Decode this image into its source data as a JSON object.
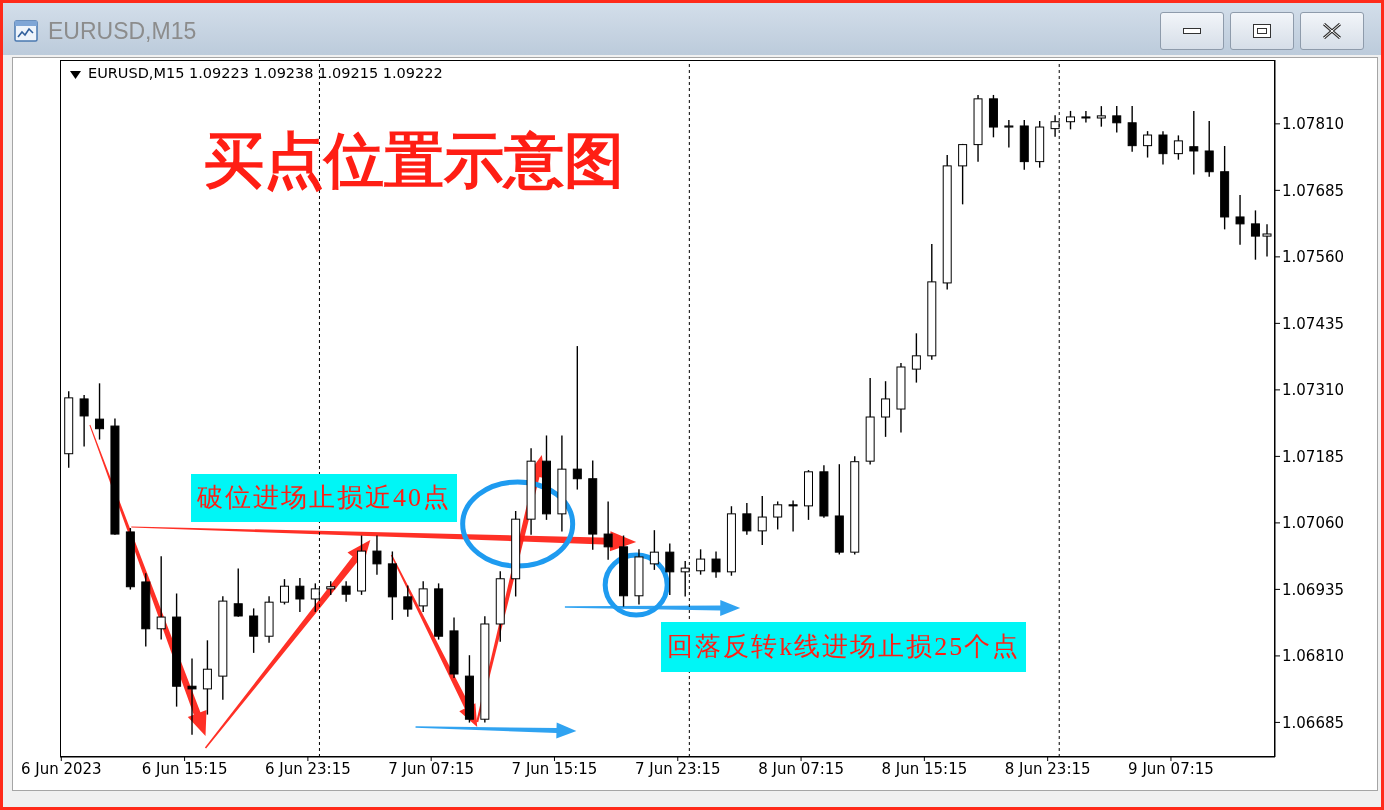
{
  "chart_data": {
    "type": "candlestick",
    "title": "买点位置示意图",
    "annotations": [
      "EURUSD,M15",
      "EURUSD,M15 1.09223 1.09238 1.09215 1.09222",
      "破位进场止损近40点",
      "回落反转k线进场止损25个点"
    ],
    "color": "#000000",
    "x": [
      "2023-06-06T07:45",
      "2023-06-06T08:45",
      "2023-06-06T09:45",
      "2023-06-06T10:45",
      "2023-06-06T11:45",
      "2023-06-06T12:45",
      "2023-06-06T13:45",
      "2023-06-06T14:45",
      "2023-06-06T15:45",
      "2023-06-06T16:45",
      "2023-06-06T17:45",
      "2023-06-06T18:45",
      "2023-06-06T19:45",
      "2023-06-06T20:45",
      "2023-06-06T21:45",
      "2023-06-06T22:45",
      "2023-06-06T23:45",
      "2023-06-07T00:45",
      "2023-06-07T01:45",
      "2023-06-07T02:45",
      "2023-06-07T03:45",
      "2023-06-07T04:45",
      "2023-06-07T05:45",
      "2023-06-07T06:45",
      "2023-06-07T07:45",
      "2023-06-07T08:45",
      "2023-06-07T09:45",
      "2023-06-07T10:45",
      "2023-06-07T11:45",
      "2023-06-07T12:45",
      "2023-06-07T13:45",
      "2023-06-07T14:45",
      "2023-06-07T15:45",
      "2023-06-07T16:45",
      "2023-06-07T17:45",
      "2023-06-07T18:45",
      "2023-06-07T19:45",
      "2023-06-07T20:45",
      "2023-06-07T21:45",
      "2023-06-07T22:45",
      "2023-06-07T23:45",
      "2023-06-08T00:45",
      "2023-06-08T01:45",
      "2023-06-08T02:45",
      "2023-06-08T03:45",
      "2023-06-08T04:45",
      "2023-06-08T05:45",
      "2023-06-08T06:45",
      "2023-06-08T07:45",
      "2023-06-08T08:45",
      "2023-06-08T09:45",
      "2023-06-08T10:45",
      "2023-06-08T11:45",
      "2023-06-08T12:45",
      "2023-06-08T13:45",
      "2023-06-08T14:45",
      "2023-06-08T15:45",
      "2023-06-08T16:45",
      "2023-06-08T17:45",
      "2023-06-08T18:45",
      "2023-06-08T19:45",
      "2023-06-08T20:45",
      "2023-06-08T21:45",
      "2023-06-08T22:45",
      "2023-06-08T23:45",
      "2023-06-09T00:45",
      "2023-06-09T01:45",
      "2023-06-09T02:45",
      "2023-06-09T03:45",
      "2023-06-09T04:45",
      "2023-06-09T05:45",
      "2023-06-09T06:45",
      "2023-06-09T07:45",
      "2023-06-09T08:45",
      "2023-06-09T09:45",
      "2023-06-09T10:45",
      "2023-06-09T11:45",
      "2023-06-09T12:45",
      "2023-06-09T13:30"
    ],
    "ohlc": [
      [
        1.0719,
        1.07306,
        1.07165,
        1.07295
      ],
      [
        1.07293,
        1.07299,
        1.07205,
        1.07261
      ],
      [
        1.07255,
        1.07321,
        1.07218,
        1.07237
      ],
      [
        1.07242,
        1.07255,
        1.07039,
        1.07039
      ],
      [
        1.07043,
        1.07049,
        1.06936,
        1.0694
      ],
      [
        1.06949,
        1.06964,
        1.06829,
        1.06861
      ],
      [
        1.06861,
        1.06996,
        1.06842,
        1.06883
      ],
      [
        1.06883,
        1.06926,
        1.06716,
        1.06753
      ],
      [
        1.06753,
        1.06804,
        1.06663,
        1.06748
      ],
      [
        1.06748,
        1.06838,
        1.06701,
        1.06785
      ],
      [
        1.06772,
        1.06921,
        1.06729,
        1.06913
      ],
      [
        1.06908,
        1.06973,
        1.06885,
        1.06885
      ],
      [
        1.06885,
        1.06898,
        1.06817,
        1.06847
      ],
      [
        1.06847,
        1.06921,
        1.06836,
        1.06911
      ],
      [
        1.06911,
        1.06953,
        1.06908,
        1.06941
      ],
      [
        1.06941,
        1.06955,
        1.06894,
        1.06917
      ],
      [
        1.06917,
        1.06945,
        1.06894,
        1.06936
      ],
      [
        1.06936,
        1.06949,
        1.06926,
        1.0694
      ],
      [
        1.06941,
        1.06949,
        1.06913,
        1.06926
      ],
      [
        1.06932,
        1.07035,
        1.06926,
        1.07007
      ],
      [
        1.07007,
        1.07035,
        1.06964,
        1.06983
      ],
      [
        1.06983,
        1.07005,
        1.06879,
        1.06921
      ],
      [
        1.06921,
        1.06941,
        1.06885,
        1.06898
      ],
      [
        1.06904,
        1.06949,
        1.06894,
        1.06936
      ],
      [
        1.06936,
        1.06945,
        1.06842,
        1.06847
      ],
      [
        1.06857,
        1.06881,
        1.0677,
        1.06776
      ],
      [
        1.06772,
        1.0681,
        1.06686,
        1.06691
      ],
      [
        1.06691,
        1.06883,
        1.06686,
        1.0687
      ],
      [
        1.0687,
        1.06968,
        1.06838,
        1.06955
      ],
      [
        1.06955,
        1.07081,
        1.06923,
        1.07067
      ],
      [
        1.07067,
        1.07199,
        1.07039,
        1.07176
      ],
      [
        1.07176,
        1.07223,
        1.07067,
        1.07077
      ],
      [
        1.07077,
        1.07223,
        1.07045,
        1.07161
      ],
      [
        1.07161,
        1.07391,
        1.07124,
        1.07143
      ],
      [
        1.07143,
        1.07176,
        1.07011,
        1.07039
      ],
      [
        1.07039,
        1.07099,
        1.06992,
        1.07015
      ],
      [
        1.07015,
        1.07035,
        1.06904,
        1.06923
      ],
      [
        1.06923,
        1.07009,
        1.06908,
        1.06996
      ],
      [
        1.06983,
        1.07045,
        1.06973,
        1.07005
      ],
      [
        1.07005,
        1.0702,
        1.06926,
        1.06968
      ],
      [
        1.06968,
        1.06987,
        1.06923,
        1.06975
      ],
      [
        1.0697,
        1.07009,
        1.06964,
        1.06992
      ],
      [
        1.06992,
        1.07005,
        1.06958,
        1.06968
      ],
      [
        1.06968,
        1.0709,
        1.06962,
        1.07077
      ],
      [
        1.07077,
        1.07096,
        1.07039,
        1.07045
      ],
      [
        1.07045,
        1.07109,
        1.0702,
        1.07071
      ],
      [
        1.07071,
        1.07099,
        1.07049,
        1.07094
      ],
      [
        1.07094,
        1.07101,
        1.07045,
        1.07092
      ],
      [
        1.07092,
        1.07158,
        1.07067,
        1.07156
      ],
      [
        1.07156,
        1.07167,
        1.07071,
        1.07073
      ],
      [
        1.07073,
        1.07169,
        1.07002,
        1.07005
      ],
      [
        1.07005,
        1.07184,
        1.07002,
        1.07175
      ],
      [
        1.07176,
        1.07331,
        1.07171,
        1.07259
      ],
      [
        1.07259,
        1.07325,
        1.07223,
        1.07293
      ],
      [
        1.07274,
        1.07359,
        1.07231,
        1.07353
      ],
      [
        1.07349,
        1.07415,
        1.07325,
        1.07374
      ],
      [
        1.07374,
        1.07583,
        1.07368,
        1.07513
      ],
      [
        1.07511,
        1.0775,
        1.075,
        1.07731
      ],
      [
        1.07731,
        1.07771,
        1.0766,
        1.07771
      ],
      [
        1.07771,
        1.07863,
        1.0774,
        1.07857
      ],
      [
        1.07857,
        1.07863,
        1.07786,
        1.07804
      ],
      [
        1.07804,
        1.07816,
        1.07767,
        1.07806
      ],
      [
        1.07806,
        1.07816,
        1.07725,
        1.07739
      ],
      [
        1.07739,
        1.07814,
        1.07729,
        1.07804
      ],
      [
        1.07801,
        1.07825,
        1.07787,
        1.07814
      ],
      [
        1.07814,
        1.07833,
        1.07801,
        1.07823
      ],
      [
        1.07823,
        1.07833,
        1.07814,
        1.07821
      ],
      [
        1.07821,
        1.07842,
        1.07806,
        1.07825
      ],
      [
        1.07825,
        1.07842,
        1.07795,
        1.07812
      ],
      [
        1.07812,
        1.07842,
        1.07759,
        1.07769
      ],
      [
        1.07769,
        1.07795,
        1.07748,
        1.07789
      ],
      [
        1.07789,
        1.07795,
        1.07735,
        1.07754
      ],
      [
        1.07754,
        1.07787,
        1.07744,
        1.07778
      ],
      [
        1.07767,
        1.07833,
        1.07716,
        1.07759
      ],
      [
        1.07759,
        1.07814,
        1.07712,
        1.0772
      ],
      [
        1.0772,
        1.07767,
        1.07613,
        1.07635
      ],
      [
        1.07635,
        1.07675,
        1.07584,
        1.07622
      ],
      [
        1.07622,
        1.07646,
        1.07556,
        1.07599
      ],
      [
        1.07599,
        1.0762,
        1.07562,
        1.07603
      ]
    ],
    "xlim": [
      "2023-06-06T07:10",
      "2023-06-09T14:00"
    ],
    "xticks": [
      {
        "value": "2023-06-06T07:15",
        "label": "6 Jun 2023"
      },
      {
        "value": "2023-06-06T15:15",
        "label": "6 Jun 15:15"
      },
      {
        "value": "2023-06-06T23:15",
        "label": "6 Jun 23:15"
      },
      {
        "value": "2023-06-07T07:15",
        "label": "7 Jun 07:15"
      },
      {
        "value": "2023-06-07T15:15",
        "label": "7 Jun 15:15"
      },
      {
        "value": "2023-06-07T23:15",
        "label": "7 Jun 23:15"
      },
      {
        "value": "2023-06-08T07:15",
        "label": "8 Jun 07:15"
      },
      {
        "value": "2023-06-08T15:15",
        "label": "8 Jun 15:15"
      },
      {
        "value": "2023-06-08T23:15",
        "label": "8 Jun 23:15"
      },
      {
        "value": "2023-06-09T07:15",
        "label": "9 Jun 07:15"
      }
    ],
    "ylim": [
      1.0662,
      1.0793
    ],
    "yticks": [
      1.06685,
      {
        "value": 1.0681,
        "label": "1.06810"
      },
      1.06935,
      {
        "value": 1.0706,
        "label": "1.07060"
      },
      1.07185,
      {
        "value": 1.0731,
        "label": "1.07310"
      },
      1.07435,
      {
        "value": 1.0756,
        "label": "1.07560"
      },
      1.07685,
      {
        "value": 1.0781,
        "label": "1.07810"
      }
    ],
    "ref_lines": [
      {
        "axis": "x",
        "value": "2023-06-07T00:00",
        "color": "#000000",
        "line_style": "dashed"
      },
      {
        "axis": "x",
        "value": "2023-06-08T00:00",
        "color": "#000000",
        "line_style": "dashed"
      },
      {
        "axis": "x",
        "value": "2023-06-09T00:00",
        "color": "#000000",
        "line_style": "dashed"
      }
    ]
  }
}
